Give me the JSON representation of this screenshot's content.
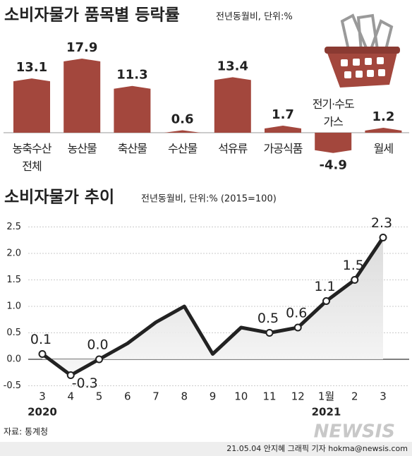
{
  "chart_data": [
    {
      "type": "bar",
      "title": "소비자물가 품목별 등락률",
      "subtitle": "전년동월비, 단위:%",
      "categories": [
        "농축수산\n전체",
        "농산물",
        "축산물",
        "수산물",
        "석유류",
        "가공식품",
        "전기·수도\n가스",
        "월세"
      ],
      "values": [
        13.1,
        17.9,
        11.3,
        0.6,
        13.4,
        1.7,
        -4.9,
        1.2
      ],
      "color": "#a3473d"
    },
    {
      "type": "line",
      "title": "소비자물가 추이",
      "subtitle": "전년동월비, 단위:% (2015=100)",
      "categories": [
        "3",
        "4",
        "5",
        "6",
        "7",
        "8",
        "9",
        "10",
        "11",
        "12",
        "1월",
        "2",
        "3"
      ],
      "values": [
        0.1,
        -0.3,
        0,
        0.3,
        0.7,
        1.0,
        0.1,
        0.6,
        0.5,
        0.6,
        1.1,
        1.5,
        2.3
      ],
      "value_labels": [
        "0.1",
        "-0.3",
        "0.0",
        null,
        null,
        null,
        null,
        null,
        "0.5",
        "0.6",
        "1.1",
        "1.5",
        "2.3"
      ],
      "ylim": [
        -0.5,
        2.5
      ],
      "yticks": [
        -0.5,
        {
          "value": 0,
          "label": "0.0"
        },
        0.5,
        {
          "value": 1,
          "label": "1.0"
        },
        1.5,
        {
          "value": 2,
          "label": "2.0"
        },
        2.5
      ],
      "annotations": [
        "2020",
        "2021"
      ],
      "color": "#222222",
      "grid": true
    }
  ],
  "footer": {
    "source": "자료: 통계청",
    "logo": "NEWSIS",
    "credit": "21.05.04 안지혜 그래픽 기자 hokma@newsis.com"
  }
}
